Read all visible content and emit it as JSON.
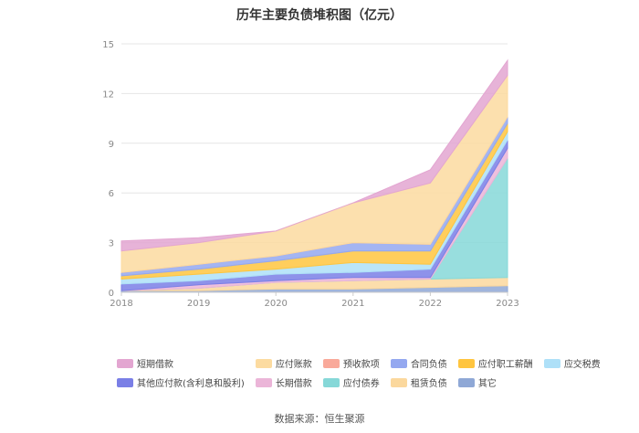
{
  "chart_data": {
    "type": "area",
    "title": "历年主要负债堆积图（亿元）",
    "x": [
      "2018",
      "2019",
      "2020",
      "2021",
      "2022",
      "2023"
    ],
    "ylim": [
      0,
      15
    ],
    "yticks": [
      0,
      3,
      6,
      9,
      12,
      15
    ],
    "grid": true,
    "legend_position": "bottom",
    "stacking": "stacked",
    "series": [
      {
        "name": "其它",
        "color": "#8fa8d6",
        "values": [
          0.1,
          0.1,
          0.2,
          0.2,
          0.3,
          0.4
        ]
      },
      {
        "name": "租赁负债",
        "color": "#fbd89d",
        "values": [
          0,
          0.15,
          0.4,
          0.5,
          0.5,
          0.5
        ]
      },
      {
        "name": "应付债券",
        "color": "#86d8d8",
        "values": [
          0,
          0,
          0,
          0,
          0,
          7.2
        ]
      },
      {
        "name": "长期借款",
        "color": "#ebb5d8",
        "values": [
          0,
          0.2,
          0.1,
          0.2,
          0.1,
          0.6
        ]
      },
      {
        "name": "其他应付款(含利息和股利)",
        "color": "#7a7fe6",
        "values": [
          0.4,
          0.25,
          0.4,
          0.3,
          0.5,
          0.5
        ]
      },
      {
        "name": "应交税费",
        "color": "#aee0f8",
        "values": [
          0.3,
          0.4,
          0.3,
          0.6,
          0.3,
          0.5
        ]
      },
      {
        "name": "应付职工薪酬",
        "color": "#ffc53f",
        "values": [
          0.2,
          0.3,
          0.5,
          0.7,
          0.8,
          0.5
        ]
      },
      {
        "name": "合同负债",
        "color": "#94a8f0",
        "values": [
          0.2,
          0.3,
          0.3,
          0.5,
          0.4,
          0.4
        ]
      },
      {
        "name": "预收款项",
        "color": "#f9a99a",
        "values": [
          0,
          0,
          0,
          0,
          0,
          0
        ]
      },
      {
        "name": "应付账款",
        "color": "#fcdba0",
        "values": [
          1.3,
          1.3,
          1.5,
          2.4,
          3.7,
          2.5
        ]
      },
      {
        "name": "短期借款",
        "color": "#e3a6d1",
        "values": [
          0.6,
          0.3,
          0,
          0,
          0.8,
          0.9
        ]
      }
    ],
    "legend_order": [
      "短期借款",
      "应付账款",
      "预收款项",
      "合同负债",
      "应付职工薪酬",
      "应交税费",
      "其他应付款(含利息和股利)",
      "长期借款",
      "应付债券",
      "租赁负债",
      "其它"
    ]
  },
  "source_text": "数据来源：恒生聚源"
}
